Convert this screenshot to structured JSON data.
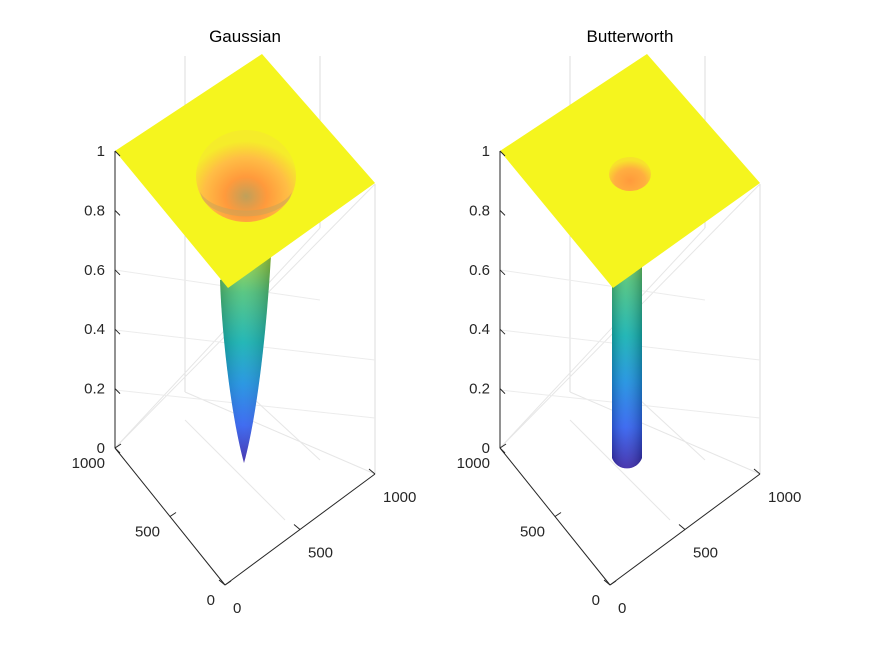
{
  "chart_data": [
    {
      "type": "surface",
      "title": "Gaussian",
      "surface_shape": "gaussian",
      "x_ticks": [
        "0",
        "500",
        "1000"
      ],
      "y_ticks": [
        "0",
        "500",
        "1000"
      ],
      "z_ticks": [
        "0",
        "0.2",
        "0.4",
        "0.6",
        "0.8",
        "1"
      ],
      "xlim": [
        0,
        1000
      ],
      "ylim": [
        0,
        1000
      ],
      "zlim": [
        0,
        1
      ],
      "grid": true,
      "colormap": "parula",
      "min_value": 0,
      "max_value": 1
    },
    {
      "type": "surface",
      "title": "Butterworth",
      "surface_shape": "butterworth",
      "x_ticks": [
        "0",
        "500",
        "1000"
      ],
      "y_ticks": [
        "0",
        "500",
        "1000"
      ],
      "z_ticks": [
        "0",
        "0.2",
        "0.4",
        "0.6",
        "0.8",
        "1"
      ],
      "xlim": [
        0,
        1000
      ],
      "ylim": [
        0,
        1000
      ],
      "zlim": [
        0,
        1
      ],
      "grid": true,
      "colormap": "parula",
      "min_value": 0,
      "max_value": 1
    }
  ],
  "colors": {
    "top_plane": "#F5F51E",
    "tube_low": "#3E26A8",
    "tube_mid": "#17B3B0",
    "tube_high": "#A0D040",
    "rim_glow": "#FFB84A",
    "axis": "#262626",
    "grid": "#DCDCDC"
  }
}
